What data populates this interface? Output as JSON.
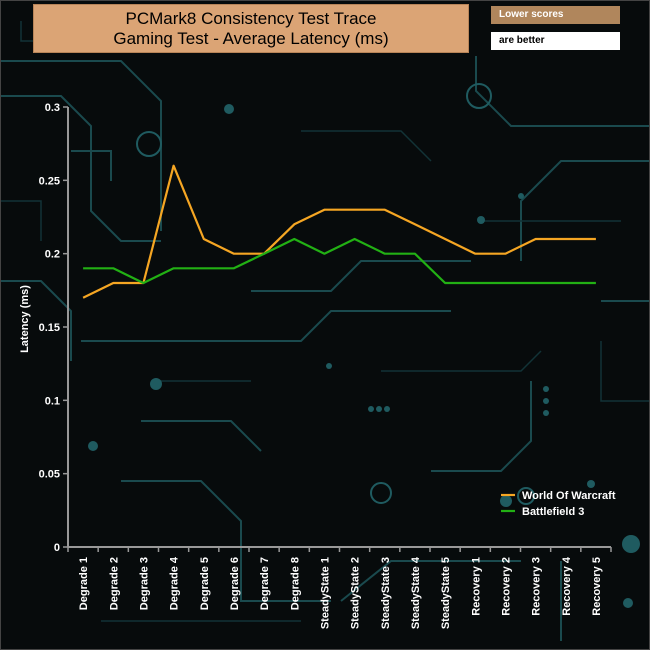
{
  "header": {
    "title_line1": "PCMark8 Consistency Test Trace",
    "title_line2": "Gaming Test -  Average Latency (ms)",
    "note_top": "Lower scores",
    "note_bottom": "are better"
  },
  "chart_data": {
    "type": "line",
    "title": "PCMark8 Consistency Test Trace Gaming Test -  Average Latency (ms)",
    "ylabel": "Latency (ms)",
    "xlabel": "",
    "ylim": [
      0,
      0.3
    ],
    "yticks": [
      "0",
      "0.05",
      "0.1",
      "0.15",
      "0.2",
      "0.25",
      "0.3"
    ],
    "categories": [
      "Degrade 1",
      "Degrade 2",
      "Degrade 3",
      "Degrade 4",
      "Degrade 5",
      "Degrade 6",
      "Degrade 7",
      "Degrade 8",
      "SteadyState 1",
      "SteadyState 2",
      "SteadyState 3",
      "SteadyState 4",
      "SteadyState 5",
      "Recovery 1",
      "Recovery 2",
      "Recovery 3",
      "Recovery 4",
      "Recovery 5"
    ],
    "series": [
      {
        "name": "World Of Warcraft",
        "color": "#f5a623",
        "values": [
          0.17,
          0.18,
          0.18,
          0.26,
          0.21,
          0.2,
          0.2,
          0.22,
          0.23,
          0.23,
          0.23,
          0.22,
          0.21,
          0.2,
          0.2,
          0.21,
          0.21,
          0.21
        ]
      },
      {
        "name": "Battlefield 3",
        "color": "#22b014",
        "values": [
          0.19,
          0.19,
          0.18,
          0.19,
          0.19,
          0.19,
          0.2,
          0.21,
          0.2,
          0.21,
          0.2,
          0.2,
          0.18,
          0.18,
          0.18,
          0.18,
          0.18,
          0.18
        ]
      }
    ],
    "legend_position": "bottom-right",
    "grid": false
  }
}
